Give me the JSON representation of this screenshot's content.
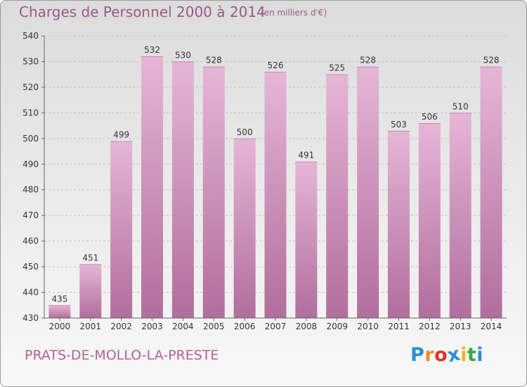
{
  "chart_data": {
    "type": "bar",
    "title": "Charges de Personnel 2000 à 2014",
    "unit_note": "(en milliers d'€)",
    "categories": [
      "2000",
      "2001",
      "2002",
      "2003",
      "2004",
      "2005",
      "2006",
      "2007",
      "2008",
      "2009",
      "2010",
      "2011",
      "2012",
      "2013",
      "2014"
    ],
    "values": [
      435,
      451,
      499,
      532,
      530,
      528,
      500,
      526,
      491,
      525,
      528,
      503,
      506,
      510,
      528
    ],
    "ylim": [
      430,
      540
    ],
    "yticks": [
      430,
      440,
      450,
      460,
      470,
      480,
      490,
      500,
      510,
      520,
      530,
      540
    ],
    "grid": true,
    "bar_color": "#d79cc4"
  },
  "commune": "PRATS-DE-MOLLO-LA-PRESTE",
  "logo": {
    "letters": [
      "P",
      "r",
      "o",
      "x",
      "i",
      "t",
      "i"
    ],
    "colors": [
      "#2a8fd6",
      "#f28a1e",
      "#e2312d",
      "#2a8fd6",
      "#f2b51e",
      "#36a844",
      "#2a8fd6"
    ]
  }
}
